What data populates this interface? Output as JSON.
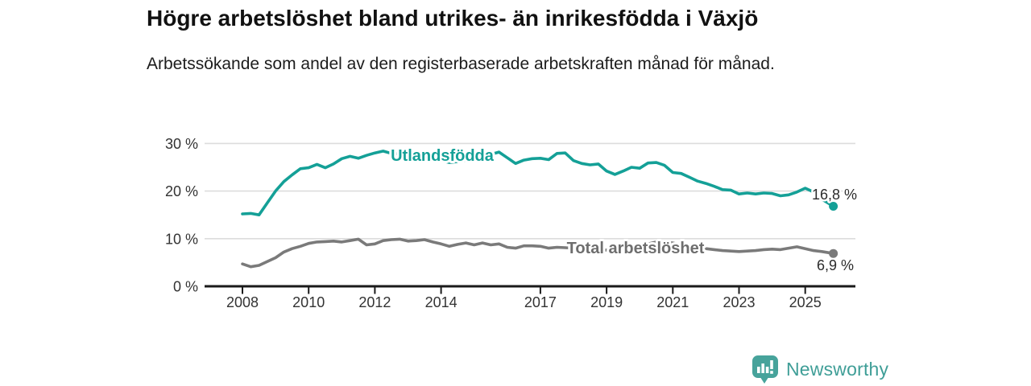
{
  "header": {
    "title": "Högre arbetslöshet bland utrikes- än inrikesfödda i Växjö",
    "subtitle": "Arbetssökande som andel av den registerbaserade arbetskraften månad för månad."
  },
  "footer": {
    "brand": "Newsworthy",
    "logo_icon": "newsworthy-speech-bubble-bar-chart-icon"
  },
  "colors": {
    "teal": "#14a097",
    "gray": "#7a7a7a",
    "gray_label": "#6e6e6e",
    "axis": "#1a1a1a",
    "grid": "#dcdcdc",
    "tick_text": "#333333",
    "end_label_text": "#2b2b2b",
    "logo_badge": "#47a39b",
    "logo_text": "#3f9e97"
  },
  "chart_data": {
    "type": "line",
    "title": "Högre arbetslöshet bland utrikes- än inrikesfödda i Växjö",
    "subtitle": "Arbetssökande som andel av den registerbaserade arbetskraften månad för månad.",
    "x_unit": "year (monthly series, sampled quarterly)",
    "xlim": [
      2008,
      2025.85
    ],
    "ylim": [
      0,
      30
    ],
    "grid": "horizontal",
    "legend_position": "inline-labels",
    "yticks": [
      {
        "v": 0,
        "label": "0 %"
      },
      {
        "v": 10,
        "label": "10 %"
      },
      {
        "v": 20,
        "label": "20 %"
      },
      {
        "v": 30,
        "label": "30 %"
      }
    ],
    "xticks": [
      {
        "v": 2008,
        "label": "2008"
      },
      {
        "v": 2010,
        "label": "2010"
      },
      {
        "v": 2012,
        "label": "2012"
      },
      {
        "v": 2014,
        "label": "2014"
      },
      {
        "v": 2017,
        "label": "2017"
      },
      {
        "v": 2019,
        "label": "2019"
      },
      {
        "v": 2021,
        "label": "2021"
      },
      {
        "v": 2023,
        "label": "2023"
      },
      {
        "v": 2025,
        "label": "2025"
      }
    ],
    "x": [
      2008,
      2008.25,
      2008.5,
      2008.75,
      2009,
      2009.25,
      2009.5,
      2009.75,
      2010,
      2010.25,
      2010.5,
      2010.75,
      2011,
      2011.25,
      2011.5,
      2011.75,
      2012,
      2012.25,
      2012.5,
      2012.75,
      2013,
      2013.25,
      2013.5,
      2013.75,
      2014,
      2014.25,
      2014.5,
      2014.75,
      2015,
      2015.25,
      2015.5,
      2015.75,
      2016,
      2016.25,
      2016.5,
      2016.75,
      2017,
      2017.25,
      2017.5,
      2017.75,
      2018,
      2018.25,
      2018.5,
      2018.75,
      2019,
      2019.25,
      2019.5,
      2019.75,
      2020,
      2020.25,
      2020.5,
      2020.75,
      2021,
      2021.25,
      2021.5,
      2021.75,
      2022,
      2022.25,
      2022.5,
      2022.75,
      2023,
      2023.25,
      2023.5,
      2023.75,
      2024,
      2024.25,
      2024.5,
      2024.75,
      2025,
      2025.25,
      2025.5,
      2025.85
    ],
    "series": [
      {
        "name": "Utlandsfödda",
        "slug": "utlandsfodda",
        "color_key": "teal",
        "end_label": "16,8 %",
        "end_value": 16.8,
        "values": [
          15.2,
          15.3,
          15.0,
          17.5,
          20.0,
          22.0,
          23.4,
          24.7,
          24.9,
          25.6,
          24.9,
          25.7,
          26.8,
          27.3,
          26.9,
          27.5,
          28.0,
          28.4,
          27.9,
          27.8,
          27.6,
          27.2,
          27.0,
          26.7,
          26.4,
          26.0,
          26.2,
          26.5,
          26.8,
          27.2,
          27.7,
          28.2,
          27.0,
          25.8,
          26.5,
          26.8,
          26.9,
          26.6,
          27.9,
          28.0,
          26.4,
          25.8,
          25.5,
          25.7,
          24.2,
          23.5,
          24.2,
          25.0,
          24.8,
          25.9,
          26.0,
          25.4,
          23.9,
          23.7,
          22.9,
          22.1,
          21.6,
          21.0,
          20.3,
          20.2,
          19.4,
          19.6,
          19.4,
          19.6,
          19.5,
          19.0,
          19.2,
          19.8,
          20.6,
          19.8,
          18.3,
          16.8
        ]
      },
      {
        "name": "Total arbetslöshet",
        "slug": "total-arbetsloshet",
        "color_key": "gray",
        "end_label": "6,9 %",
        "end_value": 6.9,
        "values": [
          4.7,
          4.1,
          4.4,
          5.2,
          6.0,
          7.2,
          7.9,
          8.4,
          9.0,
          9.3,
          9.4,
          9.5,
          9.3,
          9.6,
          9.9,
          8.7,
          8.9,
          9.6,
          9.8,
          9.9,
          9.5,
          9.6,
          9.8,
          9.3,
          8.9,
          8.4,
          8.8,
          9.1,
          8.7,
          9.1,
          8.7,
          8.9,
          8.2,
          8.0,
          8.5,
          8.5,
          8.4,
          8.0,
          8.2,
          8.1,
          8.0,
          7.9,
          7.8,
          7.7,
          7.6,
          7.6,
          7.7,
          7.9,
          8.0,
          8.9,
          9.3,
          9.4,
          9.1,
          8.7,
          8.4,
          8.1,
          7.9,
          7.7,
          7.5,
          7.4,
          7.3,
          7.4,
          7.5,
          7.7,
          7.8,
          7.7,
          8.0,
          8.3,
          7.9,
          7.5,
          7.3,
          6.9
        ]
      }
    ]
  }
}
